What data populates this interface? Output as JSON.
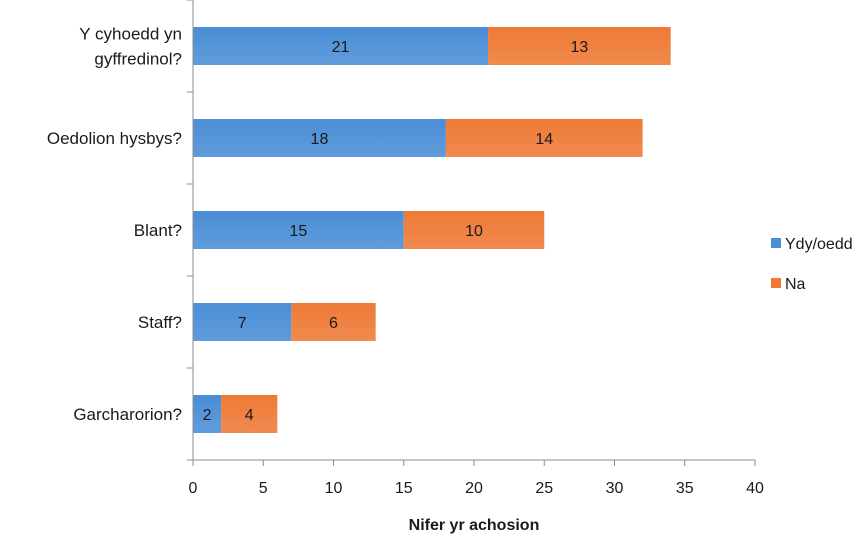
{
  "chart_data": {
    "type": "bar",
    "orientation": "horizontal",
    "stacked": true,
    "title": "",
    "xlabel": "Nifer yr achosion",
    "ylabel": "",
    "xlim": [
      0,
      40
    ],
    "xticks": [
      0,
      5,
      10,
      15,
      20,
      25,
      30,
      35,
      40
    ],
    "grid": false,
    "legend_position": "right",
    "categories": [
      [
        "Y cyhoedd yn",
        "gyffredinol?"
      ],
      [
        "Oedolion hysbys?"
      ],
      [
        "Blant?"
      ],
      [
        "Staff?"
      ],
      [
        "Garcharorion?"
      ]
    ],
    "series": [
      {
        "name": "Ydy/oedd",
        "color": "#4a8ed6",
        "values": [
          21,
          18,
          15,
          7,
          2
        ]
      },
      {
        "name": "Na",
        "color": "#ee7a36",
        "values": [
          13,
          14,
          10,
          6,
          4
        ]
      }
    ]
  }
}
